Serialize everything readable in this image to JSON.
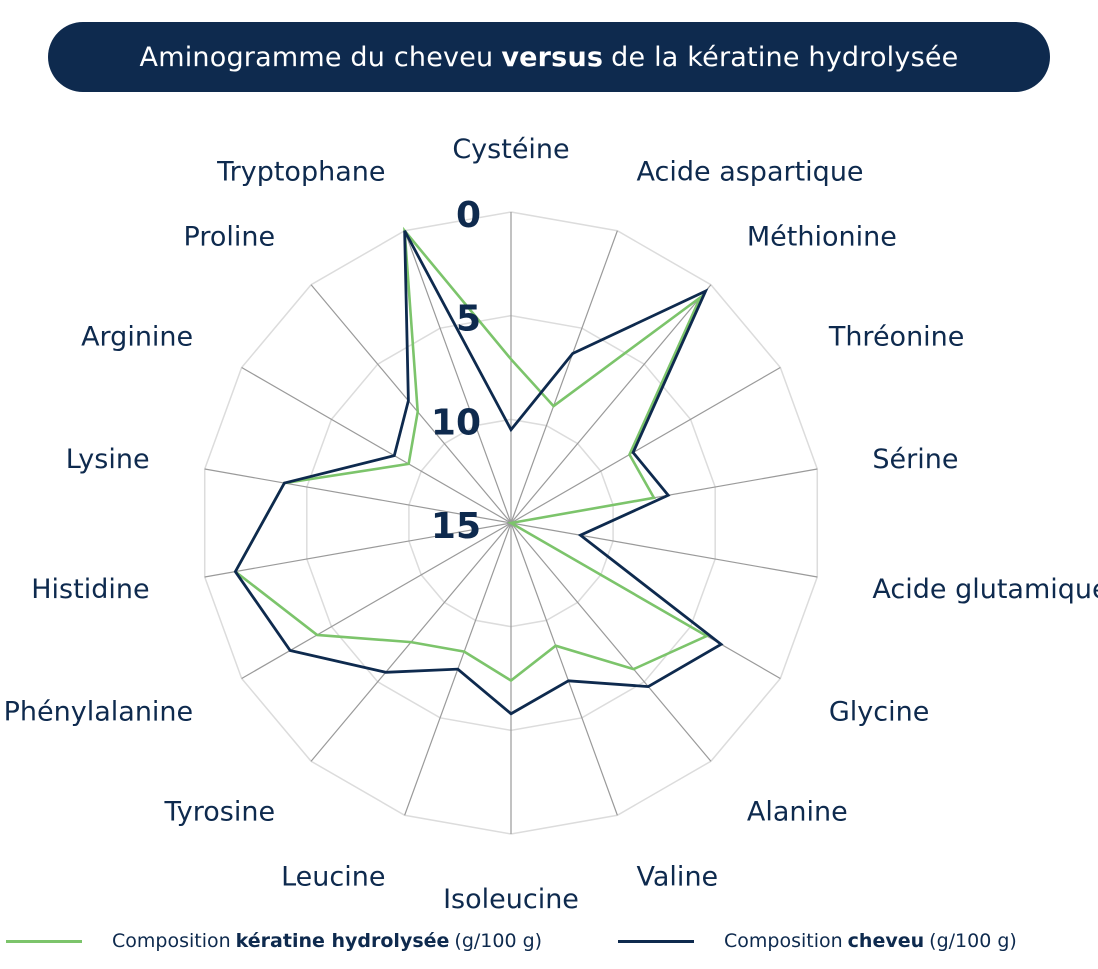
{
  "title": {
    "part1": "Aminogramme du cheveu",
    "bold": "versus",
    "part2": "de la kératine hydrolysée"
  },
  "colors": {
    "title_bg": "#0e2a4e",
    "keratine": "#7cc46b",
    "cheveu": "#0e2a4e",
    "grid": "#dcdcdc",
    "spoke": "#9a9a9a"
  },
  "legend": [
    {
      "pre": "Composition",
      "bold": "kératine hydrolysée",
      "post": "(g/100 g)",
      "color": "#7cc46b"
    },
    {
      "pre": "Composition",
      "bold": "cheveu",
      "post": "(g/100 g)",
      "color": "#0e2a4e"
    }
  ],
  "chart_data": {
    "type": "radar",
    "title": "Aminogramme du cheveu versus de la kératine hydrolysée",
    "axis_direction": "reversed",
    "radial_range": [
      0,
      15
    ],
    "radial_ticks": [
      "0",
      "5",
      "10",
      "15"
    ],
    "radial_tick_values": [
      0,
      5,
      10,
      15
    ],
    "categories": [
      "Cystéine",
      "Acide aspartique",
      "Méthionine",
      "Thréonine",
      "Sérine",
      "Acide glutamique",
      "Glycine",
      "Alanine",
      "Valine",
      "Isoleucine",
      "Leucine",
      "Tyrosine",
      "Phénylalanine",
      "Histidine",
      "Lysine",
      "Arginine",
      "Proline",
      "Tryptophane"
    ],
    "series": [
      {
        "name": "Composition kératine hydrolysée (g/100 g)",
        "color": "#7cc46b",
        "values": [
          7.1,
          9.0,
          0.8,
          8.4,
          8.0,
          15.0,
          4.1,
          5.8,
          8.7,
          7.4,
          8.4,
          7.5,
          4.2,
          1.5,
          3.9,
          9.3,
          8.0,
          0.0
        ]
      },
      {
        "name": "Composition cheveu (g/100 g)",
        "color": "#0e2a4e",
        "values": [
          10.5,
          6.3,
          0.4,
          8.2,
          7.3,
          11.6,
          3.3,
          4.7,
          6.9,
          5.8,
          7.5,
          5.6,
          2.7,
          1.5,
          3.9,
          8.5,
          7.3,
          0.0
        ]
      }
    ],
    "legend_position": "bottom",
    "grid": true
  }
}
